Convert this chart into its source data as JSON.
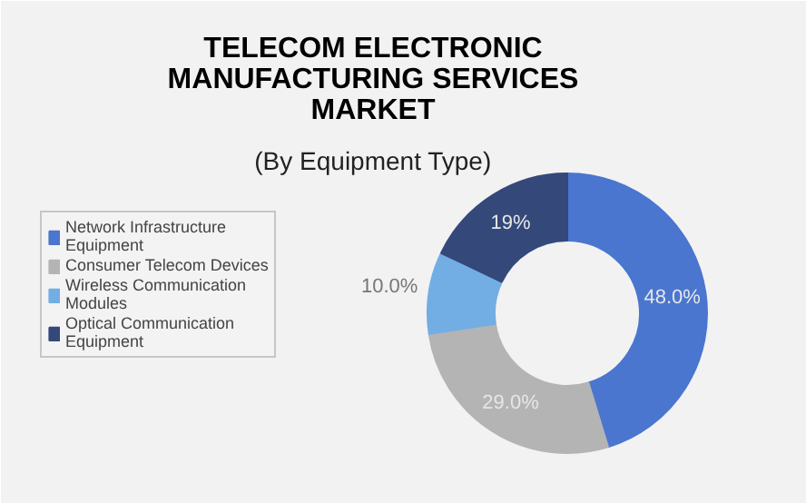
{
  "chart_data": {
    "type": "donut",
    "title": "TELECOM ELECTRONIC MANUFACTURING SERVICES MARKET",
    "subtitle": "(By Equipment Type)",
    "categories": [
      "Network Infrastructure Equipment",
      "Consumer Telecom Devices",
      "Wireless Communication Modules",
      "Optical Communication Equipment"
    ],
    "values": [
      48.0,
      29.0,
      10.0,
      19
    ],
    "value_labels": [
      "48.0%",
      "29.0%",
      "10.0%",
      "19%"
    ],
    "colors": [
      "#4a76cf",
      "#b4b4b4",
      "#72aee4",
      "#34497a"
    ],
    "legend": "left"
  }
}
